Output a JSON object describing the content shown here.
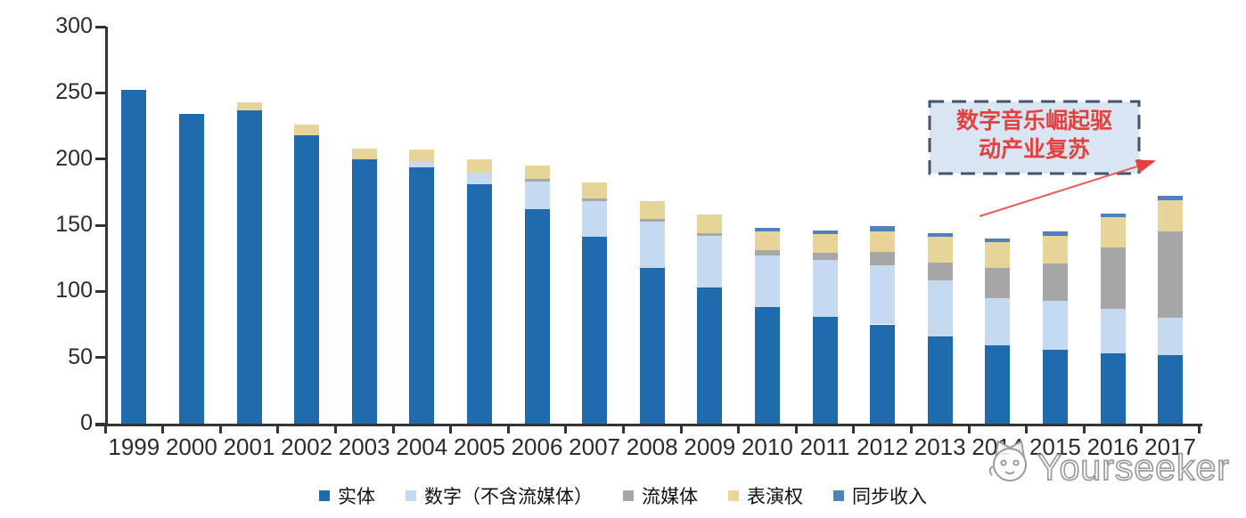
{
  "chart_data": {
    "type": "bar",
    "stacked": true,
    "title": "",
    "xlabel": "",
    "ylabel": "",
    "categories": [
      "1999",
      "2000",
      "2001",
      "2002",
      "2003",
      "2004",
      "2005",
      "2006",
      "2007",
      "2008",
      "2009",
      "2010",
      "2011",
      "2012",
      "2013",
      "2014",
      "2015",
      "2016",
      "2017"
    ],
    "series": [
      {
        "name": "实体",
        "color": "#1F6BAE",
        "values": [
          252,
          234,
          237,
          218,
          200,
          194,
          181,
          162,
          141,
          118,
          103,
          88,
          81,
          75,
          66,
          59,
          56,
          53,
          52
        ]
      },
      {
        "name": "数字（不含流媒体）",
        "color": "#C5D9F0",
        "values": [
          0,
          0,
          0,
          0,
          0,
          4,
          9,
          21,
          27,
          35,
          39,
          39,
          43,
          45,
          42,
          36,
          37,
          34,
          28
        ]
      },
      {
        "name": "流媒体",
        "color": "#A6A6A6",
        "values": [
          0,
          0,
          0,
          0,
          0,
          0,
          0,
          2,
          2,
          2,
          2,
          4,
          5,
          10,
          14,
          23,
          28,
          46,
          65
        ]
      },
      {
        "name": "表演权",
        "color": "#E7D498",
        "values": [
          0,
          0,
          6,
          8,
          8,
          9,
          10,
          10,
          12,
          13,
          14,
          14,
          14,
          15,
          19,
          19,
          21,
          23,
          24
        ]
      },
      {
        "name": "同步收入",
        "color": "#4E81BD",
        "values": [
          0,
          0,
          0,
          0,
          0,
          0,
          0,
          0,
          0,
          0,
          0,
          3,
          3,
          4,
          3,
          3,
          3,
          3,
          3
        ]
      }
    ],
    "totals": [
      252,
      234,
      243,
      226,
      208,
      207,
      200,
      195,
      182,
      168,
      158,
      148,
      146,
      149,
      144,
      140,
      145,
      159,
      172
    ],
    "ylim": [
      0,
      300
    ],
    "y_ticks": [
      0,
      50,
      100,
      150,
      200,
      250,
      300
    ],
    "grid": false,
    "legend_position": "bottom"
  },
  "annotation": {
    "text": "数字音乐崛起驱动产业复苏",
    "lines": [
      "数字音乐崛起驱",
      "动产业复苏"
    ],
    "text_color": "#E3403E",
    "border_color": "#44546A",
    "fill_color": "#D9E5F3",
    "arrow_color": "#E8504C"
  },
  "watermark": {
    "text": "Yourseeker",
    "logo": "cat-mascot",
    "outline_color": "#9b9b9b"
  },
  "axis": {
    "color": "#333333",
    "label_color": "#2b2b2b"
  }
}
